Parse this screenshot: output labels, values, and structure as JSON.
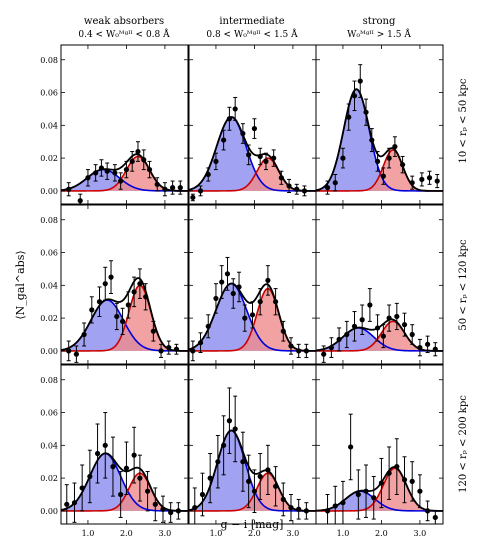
{
  "colors": {
    "blue_fill": "#8b8bef",
    "blue_line": "#0000dd",
    "red_fill": "#ef8b8b",
    "red_line": "#cc0000",
    "total_line": "#000000",
    "points": "#000000"
  },
  "figure": {
    "columns": [
      {
        "title": "weak absorbers",
        "subtitle": "0.4 < W₀ᴹᵍᴵᴵ < 0.8 Å"
      },
      {
        "title": "intermediate",
        "subtitle": "0.8 < W₀ᴹᵍᴵᴵ < 1.5 Å"
      },
      {
        "title": "strong",
        "subtitle": "W₀ᴹᵍᴵᴵ > 1.5 Å"
      }
    ],
    "rows": [
      {
        "label": "10 < rₚ < 50 kpc"
      },
      {
        "label": "50 < rₚ < 120 kpc"
      },
      {
        "label": "120 < rₚ < 200 kpc"
      }
    ],
    "xlabel": "g − i [mag]",
    "ylabel": "⟨N_gal^abs⟩"
  },
  "chart_data": {
    "type": "scatter",
    "xlim": [
      0.3,
      3.6
    ],
    "ylim": [
      -0.008,
      0.089
    ],
    "x_ticks": [
      1.0,
      2.0,
      3.0
    ],
    "x_tick_labels": [
      "1.0",
      "2.0",
      "3.0"
    ],
    "y_ticks": [
      0.0,
      0.02,
      0.04,
      0.06,
      0.08
    ],
    "y_tick_labels": [
      "0.00",
      "0.02",
      "0.04",
      "0.06",
      "0.08"
    ],
    "grid": false,
    "panels": [
      {
        "row": 0,
        "col": 0,
        "blue": {
          "amp": 0.013,
          "mu": 1.4,
          "sigma": 0.42
        },
        "red": {
          "amp": 0.021,
          "mu": 2.3,
          "sigma": 0.3
        },
        "points": [
          {
            "x": 0.5,
            "y": 0.001,
            "err": 0.004
          },
          {
            "x": 0.8,
            "y": -0.006,
            "err": 0.004
          },
          {
            "x": 1.0,
            "y": 0.008,
            "err": 0.005
          },
          {
            "x": 1.2,
            "y": 0.011,
            "err": 0.005
          },
          {
            "x": 1.35,
            "y": 0.014,
            "err": 0.005
          },
          {
            "x": 1.5,
            "y": 0.012,
            "err": 0.005
          },
          {
            "x": 1.7,
            "y": 0.011,
            "err": 0.005
          },
          {
            "x": 1.85,
            "y": 0.006,
            "err": 0.005
          },
          {
            "x": 2.0,
            "y": 0.013,
            "err": 0.005
          },
          {
            "x": 2.15,
            "y": 0.018,
            "err": 0.006
          },
          {
            "x": 2.3,
            "y": 0.024,
            "err": 0.006
          },
          {
            "x": 2.45,
            "y": 0.019,
            "err": 0.006
          },
          {
            "x": 2.6,
            "y": 0.013,
            "err": 0.005
          },
          {
            "x": 2.8,
            "y": 0.004,
            "err": 0.004
          },
          {
            "x": 3.0,
            "y": 0.001,
            "err": 0.004
          },
          {
            "x": 3.2,
            "y": 0.002,
            "err": 0.004
          },
          {
            "x": 3.4,
            "y": 0.002,
            "err": 0.004
          }
        ]
      },
      {
        "row": 0,
        "col": 1,
        "blue": {
          "amp": 0.045,
          "mu": 1.4,
          "sigma": 0.38
        },
        "red": {
          "amp": 0.02,
          "mu": 2.35,
          "sigma": 0.28
        },
        "points": [
          {
            "x": 0.4,
            "y": -0.004,
            "err": 0.002
          },
          {
            "x": 0.6,
            "y": 0.0,
            "err": 0.003
          },
          {
            "x": 0.8,
            "y": 0.01,
            "err": 0.004
          },
          {
            "x": 1.0,
            "y": 0.018,
            "err": 0.005
          },
          {
            "x": 1.2,
            "y": 0.031,
            "err": 0.006
          },
          {
            "x": 1.35,
            "y": 0.044,
            "err": 0.007
          },
          {
            "x": 1.5,
            "y": 0.05,
            "err": 0.007
          },
          {
            "x": 1.7,
            "y": 0.035,
            "err": 0.006
          },
          {
            "x": 1.85,
            "y": 0.022,
            "err": 0.006
          },
          {
            "x": 2.0,
            "y": 0.038,
            "err": 0.006
          },
          {
            "x": 2.15,
            "y": 0.021,
            "err": 0.005
          },
          {
            "x": 2.3,
            "y": 0.018,
            "err": 0.005
          },
          {
            "x": 2.5,
            "y": 0.02,
            "err": 0.005
          },
          {
            "x": 2.7,
            "y": 0.008,
            "err": 0.004
          },
          {
            "x": 2.9,
            "y": 0.003,
            "err": 0.004
          },
          {
            "x": 3.1,
            "y": 0.001,
            "err": 0.003
          },
          {
            "x": 3.3,
            "y": 0.0,
            "err": 0.003
          }
        ]
      },
      {
        "row": 0,
        "col": 2,
        "blue": {
          "amp": 0.062,
          "mu": 1.35,
          "sigma": 0.33
        },
        "red": {
          "amp": 0.025,
          "mu": 2.3,
          "sigma": 0.25
        },
        "points": [
          {
            "x": 0.6,
            "y": 0.002,
            "err": 0.004
          },
          {
            "x": 0.8,
            "y": 0.005,
            "err": 0.005
          },
          {
            "x": 1.0,
            "y": 0.02,
            "err": 0.006
          },
          {
            "x": 1.15,
            "y": 0.045,
            "err": 0.008
          },
          {
            "x": 1.3,
            "y": 0.058,
            "err": 0.009
          },
          {
            "x": 1.45,
            "y": 0.067,
            "err": 0.01
          },
          {
            "x": 1.6,
            "y": 0.048,
            "err": 0.008
          },
          {
            "x": 1.75,
            "y": 0.031,
            "err": 0.007
          },
          {
            "x": 1.9,
            "y": 0.018,
            "err": 0.006
          },
          {
            "x": 2.05,
            "y": 0.009,
            "err": 0.005
          },
          {
            "x": 2.2,
            "y": 0.02,
            "err": 0.006
          },
          {
            "x": 2.35,
            "y": 0.027,
            "err": 0.006
          },
          {
            "x": 2.55,
            "y": 0.016,
            "err": 0.005
          },
          {
            "x": 2.8,
            "y": 0.005,
            "err": 0.004
          },
          {
            "x": 3.05,
            "y": 0.007,
            "err": 0.004
          },
          {
            "x": 3.25,
            "y": 0.008,
            "err": 0.004
          },
          {
            "x": 3.45,
            "y": 0.006,
            "err": 0.004
          }
        ]
      },
      {
        "row": 1,
        "col": 0,
        "blue": {
          "amp": 0.031,
          "mu": 1.5,
          "sigma": 0.42
        },
        "red": {
          "amp": 0.04,
          "mu": 2.35,
          "sigma": 0.28
        },
        "points": [
          {
            "x": 0.5,
            "y": 0.0,
            "err": 0.006
          },
          {
            "x": 0.7,
            "y": -0.002,
            "err": 0.005
          },
          {
            "x": 0.9,
            "y": 0.01,
            "err": 0.007
          },
          {
            "x": 1.1,
            "y": 0.025,
            "err": 0.008
          },
          {
            "x": 1.3,
            "y": 0.03,
            "err": 0.009
          },
          {
            "x": 1.45,
            "y": 0.041,
            "err": 0.01
          },
          {
            "x": 1.6,
            "y": 0.045,
            "err": 0.01
          },
          {
            "x": 1.75,
            "y": 0.021,
            "err": 0.008
          },
          {
            "x": 1.9,
            "y": 0.018,
            "err": 0.008
          },
          {
            "x": 2.05,
            "y": 0.028,
            "err": 0.008
          },
          {
            "x": 2.2,
            "y": 0.036,
            "err": 0.009
          },
          {
            "x": 2.35,
            "y": 0.041,
            "err": 0.009
          },
          {
            "x": 2.5,
            "y": 0.033,
            "err": 0.008
          },
          {
            "x": 2.7,
            "y": 0.012,
            "err": 0.006
          },
          {
            "x": 2.9,
            "y": 0.0,
            "err": 0.004
          },
          {
            "x": 3.1,
            "y": 0.002,
            "err": 0.004
          },
          {
            "x": 3.3,
            "y": 0.001,
            "err": 0.003
          }
        ]
      },
      {
        "row": 1,
        "col": 1,
        "blue": {
          "amp": 0.041,
          "mu": 1.4,
          "sigma": 0.4
        },
        "red": {
          "amp": 0.038,
          "mu": 2.35,
          "sigma": 0.28
        },
        "points": [
          {
            "x": 0.4,
            "y": 0.0,
            "err": 0.006
          },
          {
            "x": 0.6,
            "y": 0.005,
            "err": 0.006
          },
          {
            "x": 0.8,
            "y": 0.015,
            "err": 0.007
          },
          {
            "x": 1.0,
            "y": 0.032,
            "err": 0.009
          },
          {
            "x": 1.15,
            "y": 0.042,
            "err": 0.01
          },
          {
            "x": 1.3,
            "y": 0.047,
            "err": 0.01
          },
          {
            "x": 1.45,
            "y": 0.035,
            "err": 0.009
          },
          {
            "x": 1.6,
            "y": 0.039,
            "err": 0.009
          },
          {
            "x": 1.75,
            "y": 0.02,
            "err": 0.008
          },
          {
            "x": 1.95,
            "y": 0.022,
            "err": 0.008
          },
          {
            "x": 2.15,
            "y": 0.03,
            "err": 0.008
          },
          {
            "x": 2.35,
            "y": 0.043,
            "err": 0.009
          },
          {
            "x": 2.55,
            "y": 0.03,
            "err": 0.008
          },
          {
            "x": 2.75,
            "y": 0.012,
            "err": 0.006
          },
          {
            "x": 2.95,
            "y": 0.003,
            "err": 0.005
          },
          {
            "x": 3.15,
            "y": 0.0,
            "err": 0.004
          },
          {
            "x": 3.35,
            "y": 0.0,
            "err": 0.004
          }
        ]
      },
      {
        "row": 1,
        "col": 2,
        "blue": {
          "amp": 0.014,
          "mu": 1.4,
          "sigma": 0.4
        },
        "red": {
          "amp": 0.018,
          "mu": 2.3,
          "sigma": 0.3
        },
        "points": [
          {
            "x": 0.5,
            "y": -0.002,
            "err": 0.005
          },
          {
            "x": 0.7,
            "y": 0.002,
            "err": 0.006
          },
          {
            "x": 0.9,
            "y": 0.007,
            "err": 0.007
          },
          {
            "x": 1.1,
            "y": 0.01,
            "err": 0.008
          },
          {
            "x": 1.3,
            "y": 0.015,
            "err": 0.009
          },
          {
            "x": 1.5,
            "y": 0.019,
            "err": 0.009
          },
          {
            "x": 1.7,
            "y": 0.028,
            "err": 0.01
          },
          {
            "x": 1.9,
            "y": 0.014,
            "err": 0.008
          },
          {
            "x": 2.05,
            "y": 0.009,
            "err": 0.007
          },
          {
            "x": 2.2,
            "y": 0.02,
            "err": 0.008
          },
          {
            "x": 2.4,
            "y": 0.021,
            "err": 0.008
          },
          {
            "x": 2.6,
            "y": 0.016,
            "err": 0.007
          },
          {
            "x": 2.8,
            "y": 0.01,
            "err": 0.006
          },
          {
            "x": 3.0,
            "y": 0.002,
            "err": 0.005
          },
          {
            "x": 3.2,
            "y": 0.004,
            "err": 0.005
          },
          {
            "x": 3.4,
            "y": 0.001,
            "err": 0.004
          }
        ]
      },
      {
        "row": 2,
        "col": 0,
        "blue": {
          "amp": 0.035,
          "mu": 1.45,
          "sigma": 0.4
        },
        "red": {
          "amp": 0.023,
          "mu": 2.35,
          "sigma": 0.28
        },
        "points": [
          {
            "x": 0.45,
            "y": 0.004,
            "err": 0.012
          },
          {
            "x": 0.65,
            "y": 0.005,
            "err": 0.012
          },
          {
            "x": 0.85,
            "y": 0.014,
            "err": 0.014
          },
          {
            "x": 1.05,
            "y": 0.021,
            "err": 0.016
          },
          {
            "x": 1.25,
            "y": 0.035,
            "err": 0.018
          },
          {
            "x": 1.45,
            "y": 0.04,
            "err": 0.02
          },
          {
            "x": 1.65,
            "y": 0.027,
            "err": 0.018
          },
          {
            "x": 1.85,
            "y": 0.01,
            "err": 0.014
          },
          {
            "x": 2.0,
            "y": 0.026,
            "err": 0.016
          },
          {
            "x": 2.2,
            "y": 0.034,
            "err": 0.017
          },
          {
            "x": 2.35,
            "y": 0.02,
            "err": 0.014
          },
          {
            "x": 2.55,
            "y": 0.012,
            "err": 0.012
          },
          {
            "x": 2.75,
            "y": 0.004,
            "err": 0.01
          },
          {
            "x": 2.95,
            "y": 0.001,
            "err": 0.008
          },
          {
            "x": 3.15,
            "y": -0.001,
            "err": 0.006
          },
          {
            "x": 3.35,
            "y": 0.0,
            "err": 0.005
          }
        ]
      },
      {
        "row": 2,
        "col": 1,
        "blue": {
          "amp": 0.049,
          "mu": 1.4,
          "sigma": 0.36
        },
        "red": {
          "amp": 0.023,
          "mu": 2.35,
          "sigma": 0.28
        },
        "points": [
          {
            "x": 0.45,
            "y": 0.002,
            "err": 0.012
          },
          {
            "x": 0.65,
            "y": 0.01,
            "err": 0.013
          },
          {
            "x": 0.85,
            "y": 0.02,
            "err": 0.015
          },
          {
            "x": 1.05,
            "y": 0.03,
            "err": 0.016
          },
          {
            "x": 1.2,
            "y": 0.04,
            "err": 0.018
          },
          {
            "x": 1.35,
            "y": 0.055,
            "err": 0.02
          },
          {
            "x": 1.5,
            "y": 0.05,
            "err": 0.02
          },
          {
            "x": 1.7,
            "y": 0.03,
            "err": 0.018
          },
          {
            "x": 1.85,
            "y": 0.018,
            "err": 0.016
          },
          {
            "x": 2.0,
            "y": 0.012,
            "err": 0.013
          },
          {
            "x": 2.15,
            "y": 0.021,
            "err": 0.014
          },
          {
            "x": 2.35,
            "y": 0.025,
            "err": 0.015
          },
          {
            "x": 2.55,
            "y": 0.015,
            "err": 0.012
          },
          {
            "x": 2.75,
            "y": 0.007,
            "err": 0.01
          },
          {
            "x": 2.95,
            "y": 0.002,
            "err": 0.008
          },
          {
            "x": 3.15,
            "y": 0.001,
            "err": 0.006
          },
          {
            "x": 3.35,
            "y": 0.0,
            "err": 0.005
          }
        ]
      },
      {
        "row": 2,
        "col": 2,
        "blue": {
          "amp": 0.012,
          "mu": 1.45,
          "sigma": 0.38
        },
        "red": {
          "amp": 0.026,
          "mu": 2.35,
          "sigma": 0.3
        },
        "points": [
          {
            "x": 0.6,
            "y": 0.0,
            "err": 0.01
          },
          {
            "x": 0.8,
            "y": 0.003,
            "err": 0.012
          },
          {
            "x": 1.0,
            "y": 0.005,
            "err": 0.013
          },
          {
            "x": 1.2,
            "y": 0.039,
            "err": 0.02
          },
          {
            "x": 1.4,
            "y": 0.01,
            "err": 0.015
          },
          {
            "x": 1.6,
            "y": 0.012,
            "err": 0.016
          },
          {
            "x": 1.8,
            "y": 0.008,
            "err": 0.013
          },
          {
            "x": 2.0,
            "y": 0.017,
            "err": 0.015
          },
          {
            "x": 2.2,
            "y": 0.023,
            "err": 0.016
          },
          {
            "x": 2.4,
            "y": 0.027,
            "err": 0.017
          },
          {
            "x": 2.6,
            "y": 0.019,
            "err": 0.014
          },
          {
            "x": 2.8,
            "y": 0.018,
            "err": 0.012
          },
          {
            "x": 3.0,
            "y": 0.012,
            "err": 0.01
          },
          {
            "x": 3.2,
            "y": 0.0,
            "err": 0.006
          },
          {
            "x": 3.4,
            "y": -0.004,
            "err": 0.004
          }
        ]
      }
    ]
  }
}
